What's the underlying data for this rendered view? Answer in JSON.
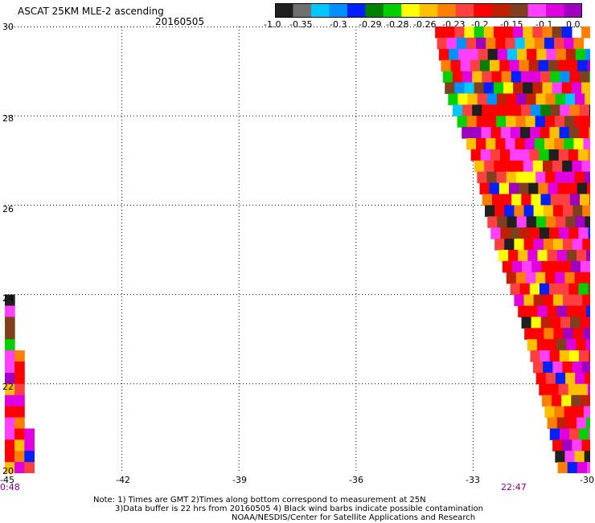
{
  "title": "ASCAT 25KM MLE-2 ascending",
  "date": "20160505",
  "colorbar": {
    "colors": [
      "#202020",
      "#707070",
      "#00c8ff",
      "#0090ff",
      "#0020ff",
      "#008000",
      "#00d000",
      "#ffff00",
      "#ffc000",
      "#ff8000",
      "#ff4040",
      "#ff0000",
      "#c02000",
      "#804020",
      "#ff40ff",
      "#e000e0",
      "#a000c0"
    ],
    "labels": [
      "-1.0",
      "-0.35",
      "-0.3",
      "-0.29",
      "-0.28",
      "-0.26",
      "-0.23",
      "-0.2",
      "-0.15",
      "-0.1",
      "0.0"
    ]
  },
  "axes": {
    "y_ticks": [
      "30",
      "28",
      "26",
      "24",
      "22",
      "20"
    ],
    "x_ticks": [
      "-45",
      "-42",
      "-39",
      "-36",
      "-33",
      "-30"
    ],
    "xlim": [
      -45,
      -30
    ],
    "ylim": [
      20,
      30
    ]
  },
  "pass_times": [
    "0:48",
    "22:47"
  ],
  "notes": [
    "Note: 1) Times are GMT 2)Times along bottom correspond to measurement at 25N",
    "3)Data buffer is 22 hrs from 20160505 4) Black wind barbs indicate possible contamination",
    "NOAA/NESDIS/Center for Satellite Applications and Research"
  ],
  "swaths": [
    {
      "name": "east-swath",
      "edge": [
        [
          -34.0,
          30.0
        ],
        [
          -33.7,
          28.5
        ],
        [
          -33.0,
          27.0
        ],
        [
          -32.6,
          25.5
        ],
        [
          -31.8,
          23.5
        ],
        [
          -31.2,
          21.5
        ],
        [
          -30.8,
          20.0
        ]
      ],
      "right": -30.0
    },
    {
      "name": "west-swath",
      "top": 24.0,
      "edge": [
        [
          -44.9,
          24.0
        ],
        [
          -44.8,
          23.0
        ],
        [
          -44.6,
          22.0
        ],
        [
          -44.5,
          21.0
        ],
        [
          -44.3,
          20.0
        ]
      ],
      "left": -45.0
    }
  ]
}
